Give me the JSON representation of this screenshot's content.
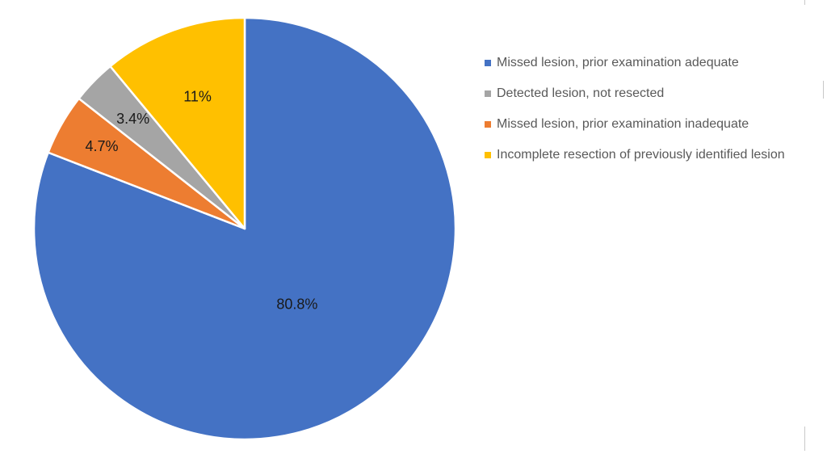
{
  "chart_data": {
    "type": "pie",
    "title": "",
    "start_angle_deg": 0,
    "direction": "clockwise",
    "legend_position": "right",
    "slices": [
      {
        "label": "Missed lesion, prior examination adequate",
        "value": 80.8,
        "display": "80.8%",
        "color": "#4472C4"
      },
      {
        "label": "Missed lesion, prior examination inadequate",
        "value": 4.7,
        "display": "4.7%",
        "color": "#ED7D31"
      },
      {
        "label": "Detected lesion, not resected",
        "value": 3.4,
        "display": "3.4%",
        "color": "#A5A5A5"
      },
      {
        "label": "Incomplete resection of previously identified lesion",
        "value": 11,
        "display": "11%",
        "color": "#FFC000"
      }
    ],
    "legend_order": [
      0,
      2,
      1,
      3
    ]
  }
}
